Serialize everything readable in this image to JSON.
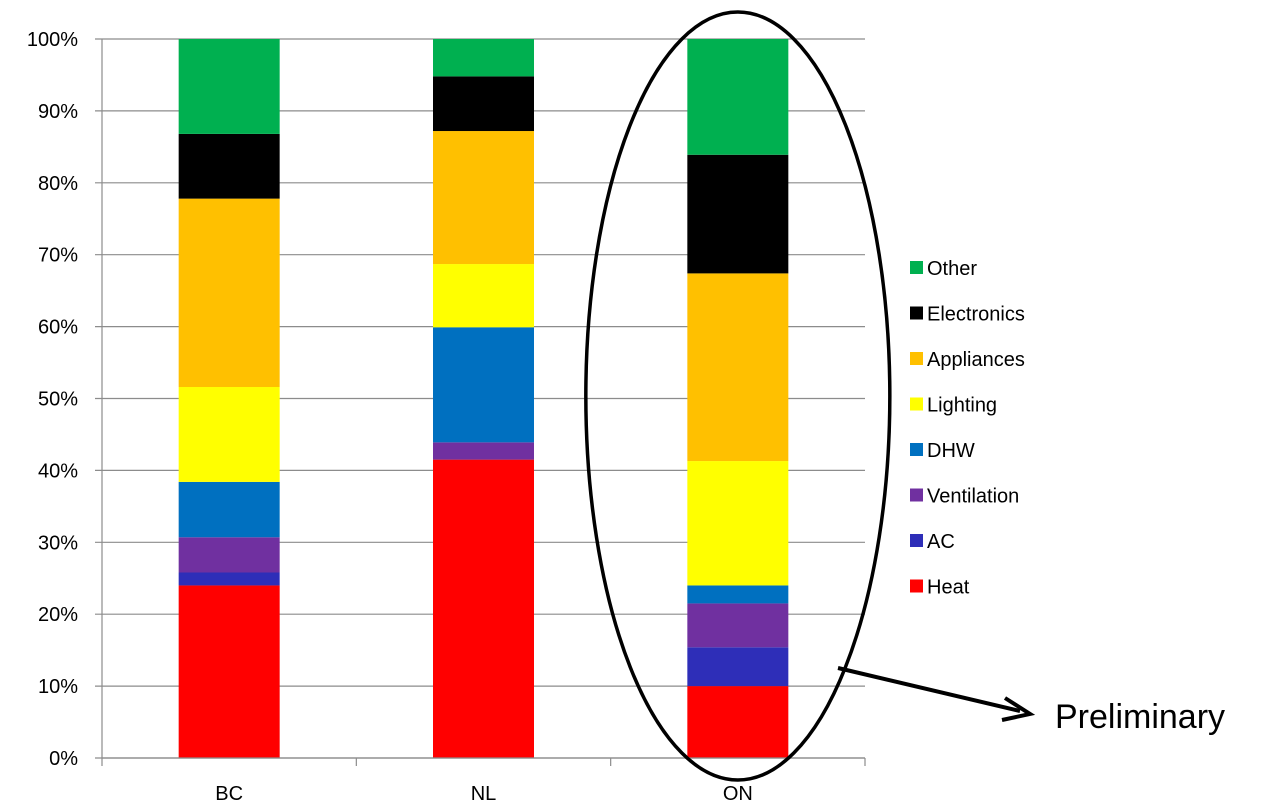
{
  "chart_data": {
    "type": "bar",
    "stacked": true,
    "normalized": true,
    "categories": [
      "BC",
      "NL",
      "ON"
    ],
    "series": [
      {
        "name": "Heat",
        "color": "#ff0000",
        "values": [
          24.0,
          41.5,
          10.0
        ]
      },
      {
        "name": "AC",
        "color": "#2e2eb8",
        "values": [
          1.8,
          0.0,
          5.4
        ]
      },
      {
        "name": "Ventilation",
        "color": "#7030a0",
        "values": [
          4.9,
          2.4,
          6.1
        ]
      },
      {
        "name": "DHW",
        "color": "#0070c0",
        "values": [
          7.7,
          16.0,
          2.5
        ]
      },
      {
        "name": "Lighting",
        "color": "#ffff00",
        "values": [
          13.2,
          8.8,
          17.3
        ]
      },
      {
        "name": "Appliances",
        "color": "#ffc000",
        "values": [
          26.2,
          18.5,
          26.1
        ]
      },
      {
        "name": "Electronics",
        "color": "#000000",
        "values": [
          9.0,
          7.6,
          16.5
        ]
      },
      {
        "name": "Other",
        "color": "#00b050",
        "values": [
          13.2,
          5.2,
          16.1
        ]
      }
    ],
    "yticks": [
      "0%",
      "10%",
      "20%",
      "30%",
      "40%",
      "50%",
      "60%",
      "70%",
      "80%",
      "90%",
      "100%"
    ],
    "ylim": [
      0,
      100
    ],
    "grid": true,
    "legend": "right",
    "legend_order": [
      "Other",
      "Electronics",
      "Appliances",
      "Lighting",
      "DHW",
      "Ventilation",
      "AC",
      "Heat"
    ],
    "highlight": {
      "category": "ON",
      "shape": "ellipse"
    },
    "annotation": {
      "text": "Preliminary",
      "arrow_from": "ON"
    }
  }
}
